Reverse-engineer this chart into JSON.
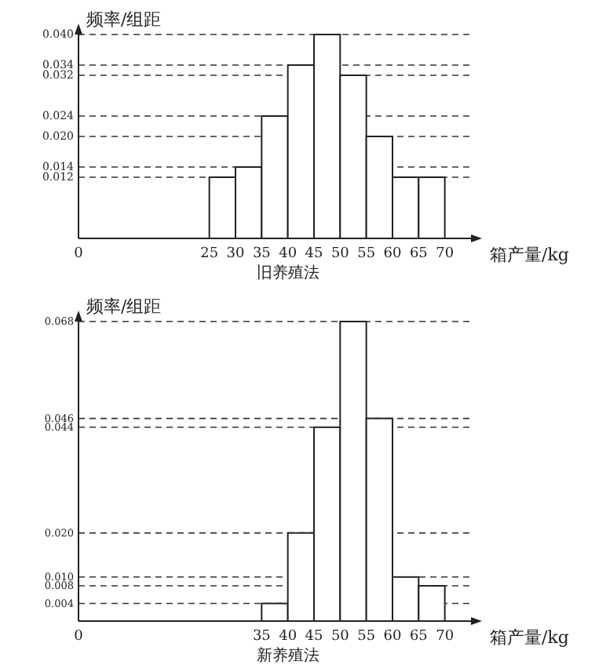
{
  "chart_data": [
    {
      "type": "histogram",
      "title": "旧养殖法",
      "xlabel": "箱产量/kg",
      "ylabel": "频率/组距",
      "bins": [
        25,
        30,
        35,
        40,
        45,
        50,
        55,
        60,
        65,
        70
      ],
      "values": [
        0.012,
        0.014,
        0.024,
        0.034,
        0.04,
        0.032,
        0.02,
        0.012,
        0.012
      ],
      "color": "#ffffff",
      "xlim": [
        0,
        75
      ],
      "xticks": [
        0,
        25,
        30,
        35,
        40,
        45,
        50,
        55,
        60,
        65,
        70
      ],
      "ylim": [
        0,
        0.04
      ],
      "yticks": [
        {
          "value": 0.012,
          "label": "0.012"
        },
        {
          "value": 0.014,
          "label": "0.014"
        },
        {
          "value": 0.02,
          "label": "0.020"
        },
        {
          "value": 0.024,
          "label": "0.024"
        },
        {
          "value": 0.032,
          "label": "0.032"
        },
        {
          "value": 0.034,
          "label": "0.034"
        },
        {
          "value": 0.04,
          "label": "0.040"
        }
      ],
      "grid": "y",
      "line_style": "dashed"
    },
    {
      "type": "histogram",
      "title": "新养殖法",
      "xlabel": "箱产量/kg",
      "ylabel": "频率/组距",
      "bins": [
        35,
        40,
        45,
        50,
        55,
        60,
        65,
        70
      ],
      "values": [
        0.004,
        0.02,
        0.044,
        0.068,
        0.046,
        0.01,
        0.008
      ],
      "color": "#ffffff",
      "xlim": [
        0,
        75
      ],
      "xticks": [
        0,
        35,
        40,
        45,
        50,
        55,
        60,
        65,
        70
      ],
      "ylim": [
        0,
        0.068
      ],
      "yticks": [
        {
          "value": 0.004,
          "label": "0.004"
        },
        {
          "value": 0.008,
          "label": "0.008"
        },
        {
          "value": 0.01,
          "label": "0.010"
        },
        {
          "value": 0.02,
          "label": "0.020"
        },
        {
          "value": 0.044,
          "label": "0.044"
        },
        {
          "value": 0.046,
          "label": "0.046"
        },
        {
          "value": 0.068,
          "label": "0.068"
        }
      ],
      "grid": "y",
      "line_style": "dashed"
    }
  ]
}
